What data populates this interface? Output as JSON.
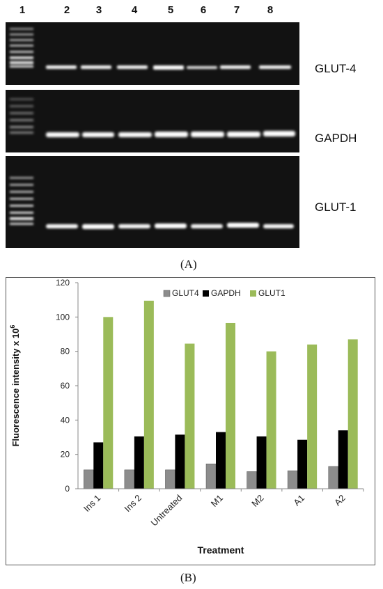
{
  "gel_panel": {
    "lane_numbers": [
      "1",
      "2",
      "3",
      "4",
      "5",
      "6",
      "7",
      "8"
    ],
    "gels": [
      {
        "label": "GLUT-4"
      },
      {
        "label": "GAPDH"
      },
      {
        "label": "GLUT-1"
      }
    ],
    "panel_label": "(A)"
  },
  "chart_panel_label": "(B)",
  "chart_data": {
    "type": "bar",
    "categories": [
      "Ins 1",
      "Ins 2",
      "Untreated",
      "M1",
      "M2",
      "A1",
      "A2"
    ],
    "series": [
      {
        "name": "GLUT4",
        "color": "#8c8c8c",
        "values": [
          11,
          11,
          11,
          14.5,
          10,
          10.5,
          13
        ]
      },
      {
        "name": "GAPDH",
        "color": "#000000",
        "values": [
          27,
          30.5,
          31.5,
          33,
          30.5,
          28.5,
          34
        ]
      },
      {
        "name": "GLUT1",
        "color": "#9bbb59",
        "values": [
          100,
          109.5,
          84.5,
          96.5,
          80,
          84,
          87
        ]
      }
    ],
    "ylabel_prefix": "Fluorescence intensity  x 10",
    "ylabel_exponent": "6",
    "xlabel": "Treatment",
    "ylim": [
      0,
      120
    ],
    "yticks": [
      0,
      20,
      40,
      60,
      80,
      100,
      120
    ],
    "legend_position": "top"
  }
}
